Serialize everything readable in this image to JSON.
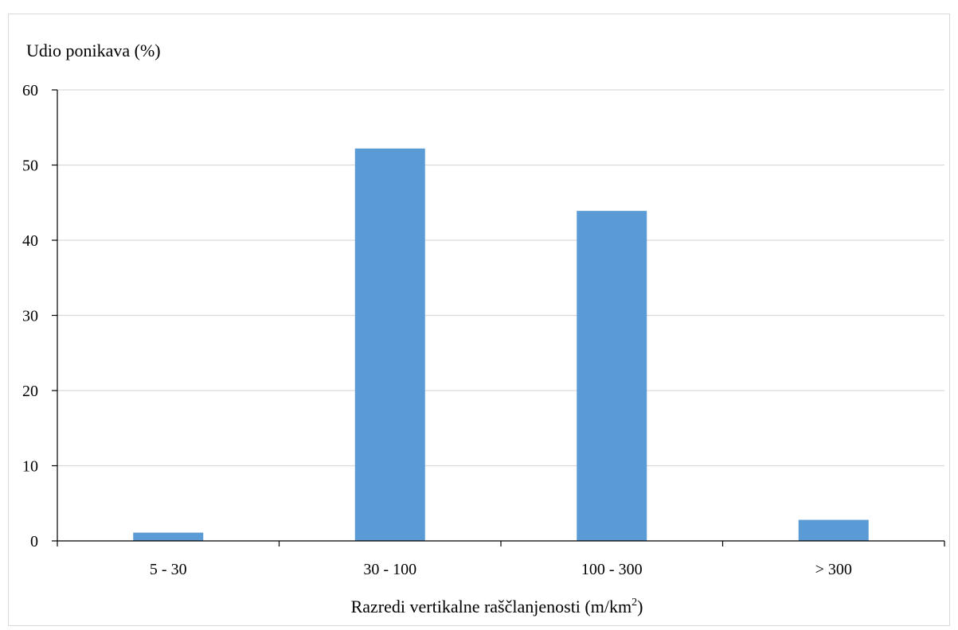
{
  "chart_data": {
    "type": "bar",
    "title": "",
    "ylabel": "Udio ponikava (%)",
    "xlabel": "Razredi vertikalne raščlanjenosti (m/km",
    "xlabel_superscript": "2",
    "xlabel_suffix": ")",
    "categories": [
      "5 - 30",
      "30 - 100",
      "100 - 300",
      "> 300"
    ],
    "values": [
      1.1,
      52.2,
      43.9,
      2.8
    ],
    "ylim": [
      0,
      60
    ],
    "yticks": [
      0,
      10,
      20,
      30,
      40,
      50,
      60
    ],
    "grid": true,
    "legend": "none",
    "colors": {
      "bar": "#5b9bd5",
      "grid": "#d9d9d9",
      "axis": "#000000"
    }
  }
}
